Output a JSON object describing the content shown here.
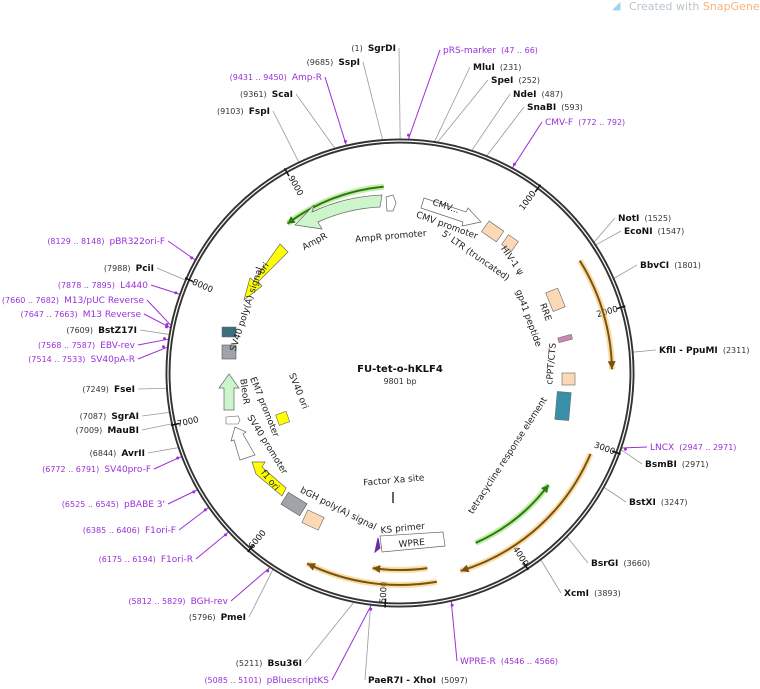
{
  "watermark": {
    "prefix": "Created with ",
    "brand": "SnapGene",
    "mark": "®"
  },
  "plasmid": {
    "name": "FU-tet-o-hKLF4",
    "length": "9801 bp",
    "length_bp": 9801
  },
  "colors": {
    "primer": "#9b30d9",
    "orf": "#e6a23c",
    "amp": "#ccf5cc",
    "ori": "#ffff00",
    "misc": "#fbd9b5"
  },
  "ticks": [
    "1000",
    "2000",
    "3000",
    "4000",
    "5000",
    "6000",
    "7000",
    "8000",
    "9000"
  ],
  "sites": [
    {
      "name": "SgrDI",
      "pos": "(1)",
      "bp": 1,
      "kind": "enzyme"
    },
    {
      "name": "pRS-marker",
      "pos": "(47 .. 66)",
      "bp": 56,
      "kind": "primer"
    },
    {
      "name": "MluI",
      "pos": "(231)",
      "bp": 231,
      "kind": "enzyme"
    },
    {
      "name": "SpeI",
      "pos": "(252)",
      "bp": 252,
      "kind": "enzyme"
    },
    {
      "name": "NdeI",
      "pos": "(487)",
      "bp": 487,
      "kind": "enzyme"
    },
    {
      "name": "SnaBI",
      "pos": "(593)",
      "bp": 593,
      "kind": "enzyme"
    },
    {
      "name": "CMV-F",
      "pos": "(772 .. 792)",
      "bp": 782,
      "kind": "primer"
    },
    {
      "name": "NotI",
      "pos": "(1525)",
      "bp": 1525,
      "kind": "enzyme"
    },
    {
      "name": "EcoNI",
      "pos": "(1547)",
      "bp": 1547,
      "kind": "enzyme"
    },
    {
      "name": "BbvCI",
      "pos": "(1801)",
      "bp": 1801,
      "kind": "enzyme"
    },
    {
      "name": "KflI - PpuMI",
      "pos": "(2311)",
      "bp": 2311,
      "kind": "enzyme"
    },
    {
      "name": "LNCX",
      "pos": "(2947 .. 2971)",
      "bp": 2959,
      "kind": "primer"
    },
    {
      "name": "BsmBI",
      "pos": "(2971)",
      "bp": 2971,
      "kind": "enzyme"
    },
    {
      "name": "BstXI",
      "pos": "(3247)",
      "bp": 3247,
      "kind": "enzyme"
    },
    {
      "name": "BsrGI",
      "pos": "(3660)",
      "bp": 3660,
      "kind": "enzyme"
    },
    {
      "name": "XcmI",
      "pos": "(3893)",
      "bp": 3893,
      "kind": "enzyme"
    },
    {
      "name": "WPRE-R",
      "pos": "(4546 .. 4566)",
      "bp": 4556,
      "kind": "primer"
    },
    {
      "name": "PaeR7I - XhoI",
      "pos": "(5097)",
      "bp": 5097,
      "kind": "enzyme"
    },
    {
      "name": "pBluescriptKS",
      "pos": "(5085 .. 5101)",
      "bp": 5093,
      "kind": "primer"
    },
    {
      "name": "Bsu36I",
      "pos": "(5211)",
      "bp": 5211,
      "kind": "enzyme"
    },
    {
      "name": "PmeI",
      "pos": "(5796)",
      "bp": 5796,
      "kind": "enzyme"
    },
    {
      "name": "BGH-rev",
      "pos": "(5812 .. 5829)",
      "bp": 5820,
      "kind": "primer"
    },
    {
      "name": "F1ori-R",
      "pos": "(6175 .. 6194)",
      "bp": 6184,
      "kind": "primer"
    },
    {
      "name": "F1ori-F",
      "pos": "(6385 .. 6406)",
      "bp": 6395,
      "kind": "primer"
    },
    {
      "name": "pBABE 3'",
      "pos": "(6525 .. 6545)",
      "bp": 6535,
      "kind": "primer"
    },
    {
      "name": "SV40pro-F",
      "pos": "(6772 .. 6791)",
      "bp": 6781,
      "kind": "primer"
    },
    {
      "name": "AvrII",
      "pos": "(6844)",
      "bp": 6844,
      "kind": "enzyme"
    },
    {
      "name": "MauBI",
      "pos": "(7009)",
      "bp": 7009,
      "kind": "enzyme"
    },
    {
      "name": "SgrAI",
      "pos": "(7087)",
      "bp": 7087,
      "kind": "enzyme"
    },
    {
      "name": "FseI",
      "pos": "(7249)",
      "bp": 7249,
      "kind": "enzyme"
    },
    {
      "name": "SV40pA-R",
      "pos": "(7514 .. 7533)",
      "bp": 7523,
      "kind": "primer"
    },
    {
      "name": "EBV-rev",
      "pos": "(7568 .. 7587)",
      "bp": 7577,
      "kind": "primer"
    },
    {
      "name": "BstZ17I",
      "pos": "(7609)",
      "bp": 7609,
      "kind": "enzyme"
    },
    {
      "name": "M13 Reverse",
      "pos": "(7647 .. 7663)",
      "bp": 7655,
      "kind": "primer"
    },
    {
      "name": "M13/pUC Reverse",
      "pos": "(7660 .. 7682)",
      "bp": 7671,
      "kind": "primer"
    },
    {
      "name": "L4440",
      "pos": "(7878 .. 7895)",
      "bp": 7886,
      "kind": "primer"
    },
    {
      "name": "PciI",
      "pos": "(7988)",
      "bp": 7988,
      "kind": "enzyme"
    },
    {
      "name": "pBR322ori-F",
      "pos": "(8129 .. 8148)",
      "bp": 8138,
      "kind": "primer"
    },
    {
      "name": "FspI",
      "pos": "(9103)",
      "bp": 9103,
      "kind": "enzyme"
    },
    {
      "name": "ScaI",
      "pos": "(9361)",
      "bp": 9361,
      "kind": "enzyme"
    },
    {
      "name": "Amp-R",
      "pos": "(9431 .. 9450)",
      "bp": 9440,
      "kind": "primer"
    },
    {
      "name": "SspI",
      "pos": "(9685)",
      "bp": 9685,
      "kind": "enzyme"
    }
  ],
  "features": [
    "AmpR promoter",
    "AmpR",
    "ori",
    "SV40 poly(A) signal",
    "BleoR",
    "EM7 promoter",
    "SV40 promoter",
    "SV40 ori",
    "f1 ori",
    "bGH poly(A) signal",
    "Factor Xa site",
    "KS primer",
    "WPRE",
    "tetracycline response element",
    "cPPT/CTS",
    "gp41 peptide",
    "RRE",
    "HIV-1 ψ",
    "5' LTR (truncated)",
    "CMV promoter",
    "CMV..."
  ]
}
